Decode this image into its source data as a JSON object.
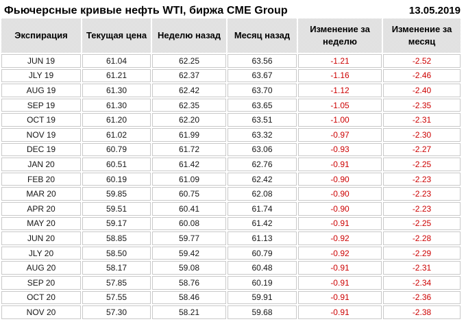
{
  "header": {
    "title": "Фьючерсные кривые нефть WTI, биржа CME Group",
    "date": "13.05.2019"
  },
  "colors": {
    "negative_change": "#cc0000",
    "grid_border": "#c8c8c8",
    "header_fill": "#dcdcdc"
  },
  "chart_data": {
    "type": "table",
    "title": "Фьючерсные кривые нефть WTI, биржа CME Group",
    "date": "13.05.2019",
    "columns": [
      "Экспирация",
      "Текущая цена",
      "Неделю назад",
      "Месяц назад",
      "Изменение за неделю",
      "Изменение за месяц"
    ],
    "rows": [
      [
        "JUN 19",
        "61.04",
        "62.25",
        "63.56",
        "-1.21",
        "-2.52"
      ],
      [
        "JLY 19",
        "61.21",
        "62.37",
        "63.67",
        "-1.16",
        "-2.46"
      ],
      [
        "AUG 19",
        "61.30",
        "62.42",
        "63.70",
        "-1.12",
        "-2.40"
      ],
      [
        "SEP 19",
        "61.30",
        "62.35",
        "63.65",
        "-1.05",
        "-2.35"
      ],
      [
        "OCT 19",
        "61.20",
        "62.20",
        "63.51",
        "-1.00",
        "-2.31"
      ],
      [
        "NOV 19",
        "61.02",
        "61.99",
        "63.32",
        "-0.97",
        "-2.30"
      ],
      [
        "DEC 19",
        "60.79",
        "61.72",
        "63.06",
        "-0.93",
        "-2.27"
      ],
      [
        "JAN 20",
        "60.51",
        "61.42",
        "62.76",
        "-0.91",
        "-2.25"
      ],
      [
        "FEB 20",
        "60.19",
        "61.09",
        "62.42",
        "-0.90",
        "-2.23"
      ],
      [
        "MAR 20",
        "59.85",
        "60.75",
        "62.08",
        "-0.90",
        "-2.23"
      ],
      [
        "APR 20",
        "59.51",
        "60.41",
        "61.74",
        "-0.90",
        "-2.23"
      ],
      [
        "MAY 20",
        "59.17",
        "60.08",
        "61.42",
        "-0.91",
        "-2.25"
      ],
      [
        "JUN 20",
        "58.85",
        "59.77",
        "61.13",
        "-0.92",
        "-2.28"
      ],
      [
        "JLY 20",
        "58.50",
        "59.42",
        "60.79",
        "-0.92",
        "-2.29"
      ],
      [
        "AUG 20",
        "58.17",
        "59.08",
        "60.48",
        "-0.91",
        "-2.31"
      ],
      [
        "SEP 20",
        "57.85",
        "58.76",
        "60.19",
        "-0.91",
        "-2.34"
      ],
      [
        "OCT 20",
        "57.55",
        "58.46",
        "59.91",
        "-0.91",
        "-2.36"
      ],
      [
        "NOV 20",
        "57.30",
        "58.21",
        "59.68",
        "-0.91",
        "-2.38"
      ]
    ]
  }
}
